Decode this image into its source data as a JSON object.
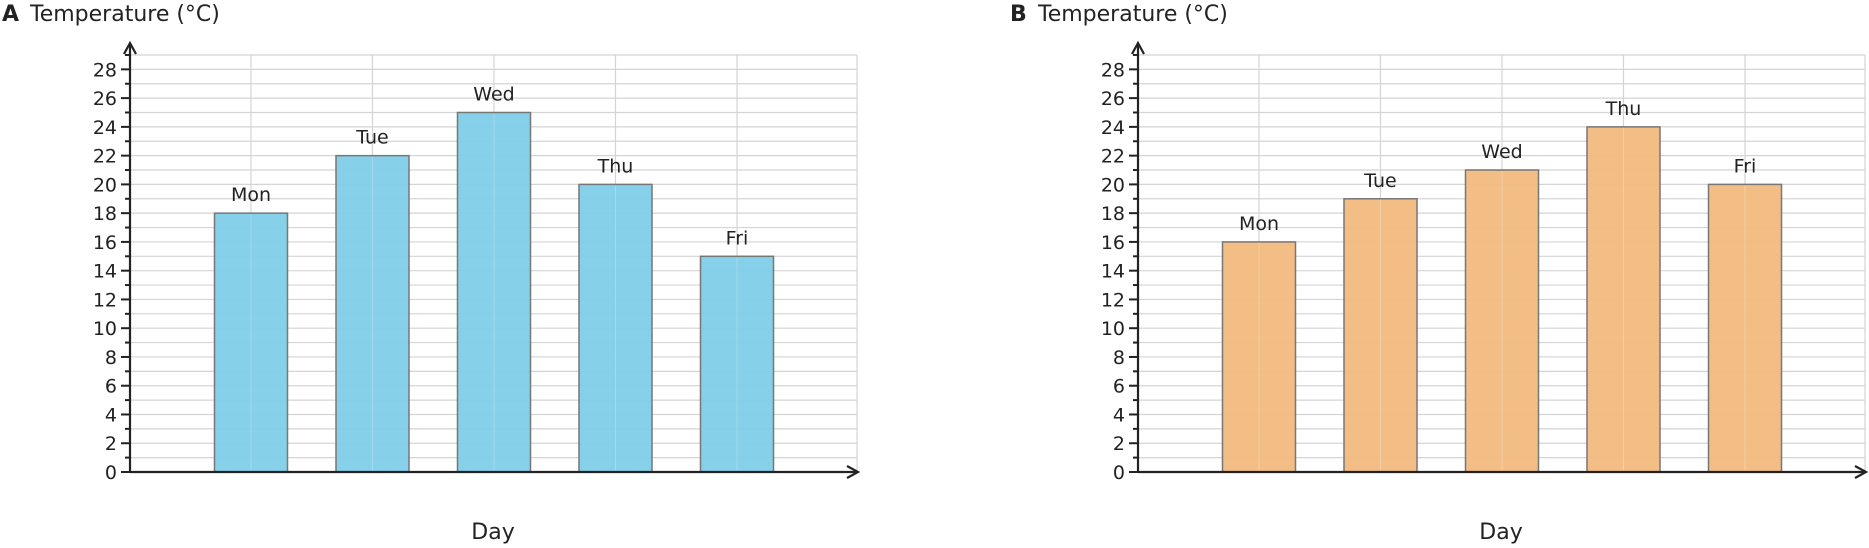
{
  "chart_data": [
    {
      "type": "bar",
      "panel": "A",
      "ylabel": "Temperature (°C)",
      "xlabel": "Day",
      "categories": [
        "Mon",
        "Tue",
        "Wed",
        "Thu",
        "Fri"
      ],
      "values": [
        18,
        22,
        25,
        20,
        15
      ],
      "ylim": [
        0,
        29
      ],
      "yticks": [
        0,
        2,
        4,
        6,
        8,
        10,
        12,
        14,
        16,
        18,
        20,
        22,
        24,
        26,
        28
      ],
      "grid": true,
      "bar_color": "#7fcee8"
    },
    {
      "type": "bar",
      "panel": "B",
      "ylabel": "Temperature (°C)",
      "xlabel": "Day",
      "categories": [
        "Mon",
        "Tue",
        "Wed",
        "Thu",
        "Fri"
      ],
      "values": [
        16,
        19,
        21,
        24,
        20
      ],
      "ylim": [
        0,
        29
      ],
      "yticks": [
        0,
        2,
        4,
        6,
        8,
        10,
        12,
        14,
        16,
        18,
        20,
        22,
        24,
        26,
        28
      ],
      "grid": true,
      "bar_color": "#f2bb80"
    }
  ]
}
